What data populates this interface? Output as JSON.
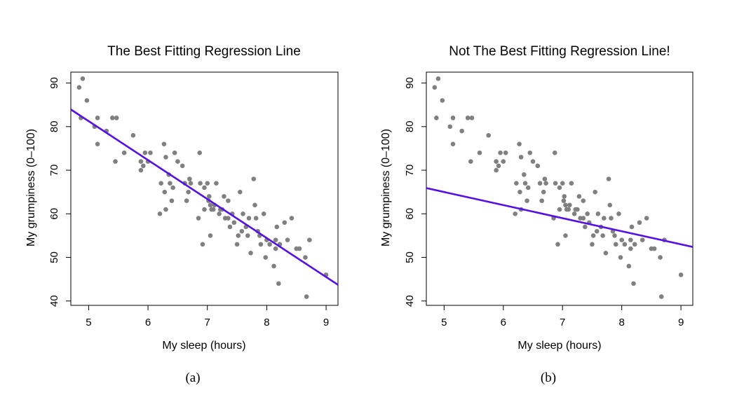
{
  "chart_data": [
    {
      "type": "scatter",
      "title": "The Best Fitting Regression Line",
      "xlabel": "My sleep (hours)",
      "ylabel": "My grumpiness (0–100)",
      "caption": "(a)",
      "xlim": [
        4.7,
        9.2
      ],
      "ylim": [
        39,
        92.5
      ],
      "xticks": [
        5,
        6,
        7,
        8,
        9
      ],
      "yticks": [
        40,
        50,
        60,
        70,
        80,
        90
      ],
      "grid": false,
      "points": [
        [
          4.84,
          89
        ],
        [
          4.9,
          91
        ],
        [
          4.87,
          82
        ],
        [
          4.97,
          86
        ],
        [
          5.1,
          80
        ],
        [
          5.15,
          82
        ],
        [
          5.15,
          76
        ],
        [
          5.3,
          79
        ],
        [
          5.4,
          82
        ],
        [
          5.45,
          72
        ],
        [
          5.47,
          82
        ],
        [
          5.6,
          74
        ],
        [
          5.75,
          78
        ],
        [
          5.88,
          72
        ],
        [
          5.88,
          70
        ],
        [
          5.92,
          71
        ],
        [
          5.95,
          74
        ],
        [
          6.0,
          72
        ],
        [
          6.04,
          74
        ],
        [
          6.2,
          60
        ],
        [
          6.22,
          67
        ],
        [
          6.27,
          76
        ],
        [
          6.28,
          65
        ],
        [
          6.3,
          73
        ],
        [
          6.3,
          61
        ],
        [
          6.35,
          69
        ],
        [
          6.37,
          67
        ],
        [
          6.4,
          63
        ],
        [
          6.42,
          66
        ],
        [
          6.45,
          74
        ],
        [
          6.5,
          72
        ],
        [
          6.58,
          71
        ],
        [
          6.62,
          67
        ],
        [
          6.65,
          63
        ],
        [
          6.68,
          65
        ],
        [
          6.7,
          68
        ],
        [
          6.72,
          67
        ],
        [
          6.85,
          59
        ],
        [
          6.87,
          74
        ],
        [
          6.88,
          67
        ],
        [
          6.92,
          53
        ],
        [
          6.95,
          61
        ],
        [
          6.95,
          66
        ],
        [
          7.0,
          67
        ],
        [
          7.02,
          63
        ],
        [
          7.03,
          64
        ],
        [
          7.05,
          62
        ],
        [
          7.05,
          55
        ],
        [
          7.07,
          61
        ],
        [
          7.1,
          61
        ],
        [
          7.12,
          62
        ],
        [
          7.15,
          67
        ],
        [
          7.2,
          60
        ],
        [
          7.22,
          61
        ],
        [
          7.25,
          61
        ],
        [
          7.28,
          64
        ],
        [
          7.3,
          59
        ],
        [
          7.35,
          59
        ],
        [
          7.35,
          63
        ],
        [
          7.38,
          57
        ],
        [
          7.42,
          60
        ],
        [
          7.45,
          58
        ],
        [
          7.5,
          53
        ],
        [
          7.52,
          55
        ],
        [
          7.55,
          65
        ],
        [
          7.58,
          56
        ],
        [
          7.6,
          60
        ],
        [
          7.65,
          57
        ],
        [
          7.68,
          55
        ],
        [
          7.7,
          59
        ],
        [
          7.73,
          51
        ],
        [
          7.78,
          68
        ],
        [
          7.8,
          62
        ],
        [
          7.82,
          59
        ],
        [
          7.85,
          56
        ],
        [
          7.88,
          55
        ],
        [
          7.9,
          53
        ],
        [
          7.95,
          60
        ],
        [
          7.98,
          50
        ],
        [
          8.0,
          54
        ],
        [
          8.05,
          53
        ],
        [
          8.12,
          48
        ],
        [
          8.15,
          54
        ],
        [
          8.15,
          52
        ],
        [
          8.17,
          57
        ],
        [
          8.2,
          44
        ],
        [
          8.22,
          53
        ],
        [
          8.3,
          58
        ],
        [
          8.35,
          54
        ],
        [
          8.42,
          59
        ],
        [
          8.5,
          52
        ],
        [
          8.55,
          52
        ],
        [
          8.65,
          50
        ],
        [
          8.67,
          41
        ],
        [
          8.72,
          54
        ],
        [
          9.0,
          46
        ]
      ],
      "line": {
        "intercept": 125.96,
        "slope": -8.94
      },
      "colors": {
        "points": "#808080",
        "line": "#5410e6"
      }
    },
    {
      "type": "scatter",
      "title": "Not The Best Fitting Regression Line!",
      "xlabel": "My sleep (hours)",
      "ylabel": "My grumpiness (0–100)",
      "caption": "(b)",
      "xlim": [
        4.7,
        9.2
      ],
      "ylim": [
        39,
        92.5
      ],
      "xticks": [
        5,
        6,
        7,
        8,
        9
      ],
      "yticks": [
        40,
        50,
        60,
        70,
        80,
        90
      ],
      "grid": false,
      "points": [
        [
          4.84,
          89
        ],
        [
          4.9,
          91
        ],
        [
          4.87,
          82
        ],
        [
          4.97,
          86
        ],
        [
          5.1,
          80
        ],
        [
          5.15,
          82
        ],
        [
          5.15,
          76
        ],
        [
          5.3,
          79
        ],
        [
          5.4,
          82
        ],
        [
          5.45,
          72
        ],
        [
          5.47,
          82
        ],
        [
          5.6,
          74
        ],
        [
          5.75,
          78
        ],
        [
          5.88,
          72
        ],
        [
          5.88,
          70
        ],
        [
          5.92,
          71
        ],
        [
          5.95,
          74
        ],
        [
          6.0,
          72
        ],
        [
          6.04,
          74
        ],
        [
          6.2,
          60
        ],
        [
          6.22,
          67
        ],
        [
          6.27,
          76
        ],
        [
          6.28,
          65
        ],
        [
          6.3,
          73
        ],
        [
          6.3,
          61
        ],
        [
          6.35,
          69
        ],
        [
          6.37,
          67
        ],
        [
          6.4,
          63
        ],
        [
          6.42,
          66
        ],
        [
          6.45,
          74
        ],
        [
          6.5,
          72
        ],
        [
          6.58,
          71
        ],
        [
          6.62,
          67
        ],
        [
          6.65,
          63
        ],
        [
          6.68,
          65
        ],
        [
          6.7,
          68
        ],
        [
          6.72,
          67
        ],
        [
          6.85,
          59
        ],
        [
          6.87,
          74
        ],
        [
          6.88,
          67
        ],
        [
          6.92,
          53
        ],
        [
          6.95,
          61
        ],
        [
          6.95,
          66
        ],
        [
          7.0,
          67
        ],
        [
          7.02,
          63
        ],
        [
          7.03,
          64
        ],
        [
          7.05,
          62
        ],
        [
          7.05,
          55
        ],
        [
          7.07,
          61
        ],
        [
          7.1,
          61
        ],
        [
          7.12,
          62
        ],
        [
          7.15,
          67
        ],
        [
          7.2,
          60
        ],
        [
          7.22,
          61
        ],
        [
          7.25,
          61
        ],
        [
          7.28,
          64
        ],
        [
          7.3,
          59
        ],
        [
          7.35,
          59
        ],
        [
          7.35,
          63
        ],
        [
          7.38,
          57
        ],
        [
          7.42,
          60
        ],
        [
          7.45,
          58
        ],
        [
          7.5,
          53
        ],
        [
          7.52,
          55
        ],
        [
          7.55,
          65
        ],
        [
          7.58,
          56
        ],
        [
          7.6,
          60
        ],
        [
          7.65,
          57
        ],
        [
          7.68,
          55
        ],
        [
          7.7,
          59
        ],
        [
          7.73,
          51
        ],
        [
          7.78,
          68
        ],
        [
          7.8,
          62
        ],
        [
          7.82,
          59
        ],
        [
          7.85,
          56
        ],
        [
          7.88,
          55
        ],
        [
          7.9,
          53
        ],
        [
          7.95,
          60
        ],
        [
          7.98,
          50
        ],
        [
          8.0,
          54
        ],
        [
          8.05,
          53
        ],
        [
          8.12,
          48
        ],
        [
          8.15,
          54
        ],
        [
          8.15,
          52
        ],
        [
          8.17,
          57
        ],
        [
          8.2,
          44
        ],
        [
          8.22,
          53
        ],
        [
          8.3,
          58
        ],
        [
          8.35,
          54
        ],
        [
          8.42,
          59
        ],
        [
          8.5,
          52
        ],
        [
          8.55,
          52
        ],
        [
          8.65,
          50
        ],
        [
          8.67,
          41
        ],
        [
          8.72,
          54
        ],
        [
          9.0,
          46
        ]
      ],
      "line": {
        "intercept": 80.0,
        "slope": -3.0
      },
      "colors": {
        "points": "#808080",
        "line": "#5410e6"
      }
    }
  ]
}
